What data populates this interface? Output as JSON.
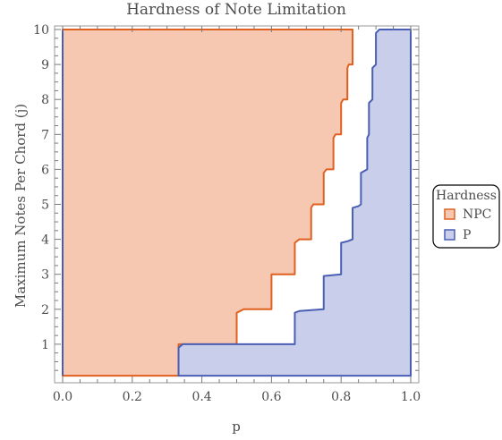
{
  "chart_data": {
    "type": "area",
    "title": "Hardness of Note Limitation",
    "xlabel": "p",
    "ylabel": "Maximum Notes Per Chord (j)",
    "xlim": [
      0,
      1
    ],
    "ylim": [
      0,
      10
    ],
    "xticks": [
      0.0,
      0.2,
      0.4,
      0.6,
      0.8,
      1.0
    ],
    "yticks": [
      1,
      2,
      3,
      4,
      5,
      6,
      7,
      8,
      9,
      10
    ],
    "xtick_labels": [
      "0.0",
      "0.2",
      "0.4",
      "0.6",
      "0.8",
      "1.0"
    ],
    "ytick_labels": [
      "1",
      "2",
      "3",
      "4",
      "5",
      "6",
      "7",
      "8",
      "9",
      "10"
    ],
    "legend": {
      "title": "Hardness",
      "position": "right"
    },
    "series": [
      {
        "name": "NPC",
        "line_color": "#E06020",
        "fill_color": "#F6C7B1",
        "region": [
          [
            0.0,
            0.1
          ],
          [
            0.333,
            0.1
          ],
          [
            0.333,
            1.0
          ],
          [
            0.5,
            1.0
          ],
          [
            0.5,
            1.9
          ],
          [
            0.52,
            2.0
          ],
          [
            0.6,
            2.0
          ],
          [
            0.6,
            3.0
          ],
          [
            0.65,
            3.0
          ],
          [
            0.667,
            3.0
          ],
          [
            0.667,
            3.9
          ],
          [
            0.68,
            4.0
          ],
          [
            0.714,
            4.0
          ],
          [
            0.714,
            4.9
          ],
          [
            0.72,
            5.0
          ],
          [
            0.75,
            5.0
          ],
          [
            0.75,
            5.9
          ],
          [
            0.758,
            6.0
          ],
          [
            0.778,
            6.0
          ],
          [
            0.778,
            6.9
          ],
          [
            0.784,
            7.0
          ],
          [
            0.8,
            7.0
          ],
          [
            0.8,
            7.9
          ],
          [
            0.806,
            8.0
          ],
          [
            0.818,
            8.0
          ],
          [
            0.818,
            8.9
          ],
          [
            0.822,
            9.0
          ],
          [
            0.833,
            9.0
          ],
          [
            0.833,
            10.0
          ],
          [
            0.0,
            10.0
          ]
        ]
      },
      {
        "name": "P",
        "line_color": "#4A5FB4",
        "fill_color": "#C9CFEB",
        "region": [
          [
            0.333,
            0.1
          ],
          [
            1.0,
            0.1
          ],
          [
            1.0,
            10.0
          ],
          [
            0.91,
            10.0
          ],
          [
            0.9,
            9.9
          ],
          [
            0.9,
            9.0
          ],
          [
            0.89,
            8.9
          ],
          [
            0.89,
            8.0
          ],
          [
            0.88,
            7.9
          ],
          [
            0.88,
            7.0
          ],
          [
            0.875,
            6.9
          ],
          [
            0.875,
            6.0
          ],
          [
            0.857,
            5.9
          ],
          [
            0.857,
            5.0
          ],
          [
            0.85,
            4.95
          ],
          [
            0.833,
            4.9
          ],
          [
            0.833,
            4.0
          ],
          [
            0.82,
            3.95
          ],
          [
            0.8,
            3.9
          ],
          [
            0.8,
            3.0
          ],
          [
            0.75,
            2.95
          ],
          [
            0.75,
            2.0
          ],
          [
            0.68,
            1.95
          ],
          [
            0.667,
            1.9
          ],
          [
            0.667,
            1.0
          ],
          [
            0.345,
            1.0
          ],
          [
            0.333,
            0.9
          ]
        ]
      },
      {
        "name": "",
        "line_color": "#4A5FB4",
        "fill_color": "none",
        "region": [
          [
            0.0,
            0.1
          ],
          [
            0.0,
            10.0
          ]
        ]
      }
    ]
  }
}
